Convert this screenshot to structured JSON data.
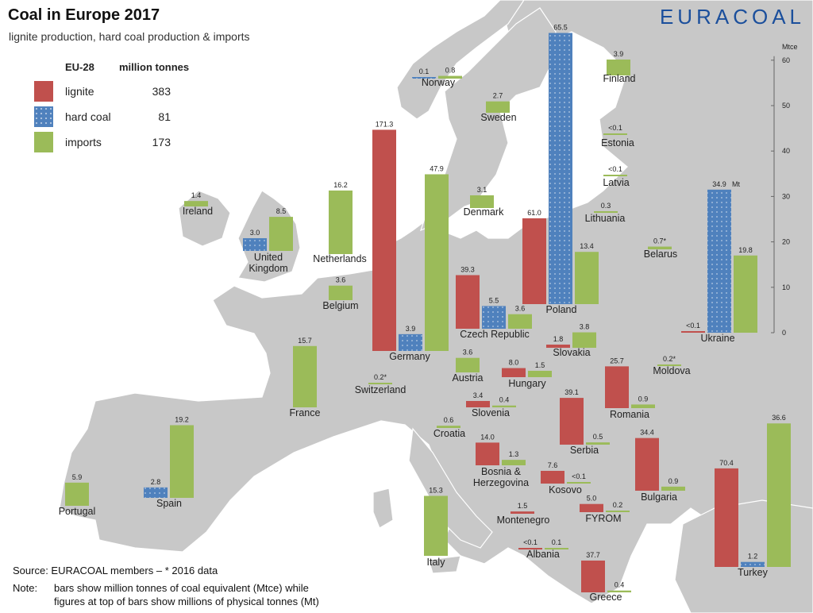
{
  "title": "Coal in Europe 2017",
  "subtitle": "lignite production, hard coal production & imports",
  "brand": "EURACOAL",
  "legend": {
    "header_region": "EU-28",
    "header_unit": "million tonnes",
    "items": [
      {
        "name": "lignite",
        "value": "383"
      },
      {
        "name": "hard coal",
        "value": "81"
      },
      {
        "name": "imports",
        "value": "173"
      }
    ]
  },
  "source": "Source: EURACOAL members  –  * 2016 data",
  "note_label": "Note:",
  "note_line1": "bars show million tonnes of coal equivalent (Mtce) while",
  "note_line2": "figures at top of bars show millions of physical tonnes (Mt)",
  "colors": {
    "lignite": "#c0504d",
    "hard_coal": "#4f81bd",
    "imports": "#9bbb59",
    "land": "#c8c8c8",
    "sea": "#ffffff",
    "brand": "#1b4f9c"
  },
  "chart_data": {
    "type": "bar",
    "title": "Coal in Europe 2017",
    "subtitle": "lignite production, hard coal production & imports",
    "unit": "Mtce",
    "axis_label": "Mtce",
    "mt_suffix": "Mt",
    "ylim": [
      0,
      60
    ],
    "yticks": [
      0,
      10,
      20,
      30,
      40,
      50,
      60
    ],
    "series_names": [
      "lignite",
      "hard coal",
      "imports"
    ],
    "countries": [
      {
        "name": "Norway",
        "bars": [
          {
            "s": "hard coal",
            "mtce": 0.1,
            "label": "0.1"
          },
          {
            "s": "imports",
            "mtce": 0.6,
            "label": "0.8"
          }
        ]
      },
      {
        "name": "Finland",
        "bars": [
          {
            "s": "imports",
            "mtce": 3.5,
            "label": "3.9"
          }
        ]
      },
      {
        "name": "Sweden",
        "bars": [
          {
            "s": "imports",
            "mtce": 2.5,
            "label": "2.7"
          }
        ]
      },
      {
        "name": "Estonia",
        "bars": [
          {
            "s": "imports",
            "mtce": 0.1,
            "label": "<0.1"
          }
        ]
      },
      {
        "name": "Latvia",
        "bars": [
          {
            "s": "imports",
            "mtce": 0.1,
            "label": "<0.1"
          }
        ]
      },
      {
        "name": "Ireland",
        "bars": [
          {
            "s": "imports",
            "mtce": 1.2,
            "label": "1.4"
          }
        ]
      },
      {
        "name": "United Kingdom",
        "bars": [
          {
            "s": "hard coal",
            "mtce": 2.8,
            "label": "3.0"
          },
          {
            "s": "imports",
            "mtce": 7.5,
            "label": "8.5"
          }
        ]
      },
      {
        "name": "Netherlands",
        "bars": [
          {
            "s": "imports",
            "mtce": 14.0,
            "label": "16.2"
          }
        ]
      },
      {
        "name": "Denmark",
        "bars": [
          {
            "s": "imports",
            "mtce": 2.8,
            "label": "3.1"
          }
        ]
      },
      {
        "name": "Lithuania",
        "bars": [
          {
            "s": "imports",
            "mtce": 0.3,
            "label": "0.3"
          }
        ]
      },
      {
        "name": "Belarus",
        "bars": [
          {
            "s": "imports",
            "mtce": 0.6,
            "label": "0.7*"
          }
        ]
      },
      {
        "name": "Belgium",
        "bars": [
          {
            "s": "imports",
            "mtce": 3.2,
            "label": "3.6"
          }
        ]
      },
      {
        "name": "Germany",
        "bars": [
          {
            "s": "lignite",
            "mtce": 48.7,
            "label": "171.3"
          },
          {
            "s": "hard coal",
            "mtce": 3.7,
            "label": "3.9"
          },
          {
            "s": "imports",
            "mtce": 38.9,
            "label": "47.9"
          }
        ]
      },
      {
        "name": "Poland",
        "bars": [
          {
            "s": "lignite",
            "mtce": 18.9,
            "label": "61.0"
          },
          {
            "s": "hard coal",
            "mtce": 59.7,
            "label": "65.5"
          },
          {
            "s": "imports",
            "mtce": 11.5,
            "label": "13.4"
          }
        ]
      },
      {
        "name": "Czech Republic",
        "bars": [
          {
            "s": "lignite",
            "mtce": 11.8,
            "label": "39.3"
          },
          {
            "s": "hard coal",
            "mtce": 5.0,
            "label": "5.5"
          },
          {
            "s": "imports",
            "mtce": 3.2,
            "label": "3.6"
          }
        ]
      },
      {
        "name": "Ukraine",
        "bars": [
          {
            "s": "lignite",
            "mtce": 0.1,
            "label": "<0.1"
          },
          {
            "s": "hard coal",
            "mtce": 31.5,
            "label": "34.9"
          },
          {
            "s": "imports",
            "mtce": 17.0,
            "label": "19.8"
          }
        ]
      },
      {
        "name": "Slovakia",
        "bars": [
          {
            "s": "lignite",
            "mtce": 0.7,
            "label": "1.8"
          },
          {
            "s": "imports",
            "mtce": 3.4,
            "label": "3.8"
          }
        ]
      },
      {
        "name": "Austria",
        "bars": [
          {
            "s": "imports",
            "mtce": 3.2,
            "label": "3.6"
          }
        ]
      },
      {
        "name": "Hungary",
        "bars": [
          {
            "s": "lignite",
            "mtce": 2.0,
            "label": "8.0"
          },
          {
            "s": "imports",
            "mtce": 1.4,
            "label": "1.5"
          }
        ]
      },
      {
        "name": "Moldova",
        "bars": [
          {
            "s": "imports",
            "mtce": 0.2,
            "label": "0.2*"
          }
        ]
      },
      {
        "name": "France",
        "bars": [
          {
            "s": "imports",
            "mtce": 13.5,
            "label": "15.7"
          }
        ]
      },
      {
        "name": "Switzerland",
        "bars": [
          {
            "s": "imports",
            "mtce": 0.2,
            "label": "0.2*"
          }
        ]
      },
      {
        "name": "Slovenia",
        "bars": [
          {
            "s": "lignite",
            "mtce": 1.4,
            "label": "3.4"
          },
          {
            "s": "imports",
            "mtce": 0.4,
            "label": "0.4"
          }
        ]
      },
      {
        "name": "Romania",
        "bars": [
          {
            "s": "lignite",
            "mtce": 9.2,
            "label": "25.7"
          },
          {
            "s": "imports",
            "mtce": 0.8,
            "label": "0.9"
          }
        ]
      },
      {
        "name": "Serbia",
        "bars": [
          {
            "s": "lignite",
            "mtce": 10.3,
            "label": "39.1"
          },
          {
            "s": "imports",
            "mtce": 0.5,
            "label": "0.5"
          }
        ]
      },
      {
        "name": "Croatia",
        "bars": [
          {
            "s": "imports",
            "mtce": 0.5,
            "label": "0.6"
          }
        ]
      },
      {
        "name": "Bosnia & Herzegovina",
        "bars": [
          {
            "s": "lignite",
            "mtce": 5.0,
            "label": "14.0"
          },
          {
            "s": "imports",
            "mtce": 1.2,
            "label": "1.3"
          }
        ]
      },
      {
        "name": "Portugal",
        "bars": [
          {
            "s": "imports",
            "mtce": 5.1,
            "label": "5.9"
          }
        ]
      },
      {
        "name": "Spain",
        "bars": [
          {
            "s": "hard coal",
            "mtce": 2.3,
            "label": "2.8"
          },
          {
            "s": "imports",
            "mtce": 16.0,
            "label": "19.2"
          }
        ]
      },
      {
        "name": "Kosovo",
        "bars": [
          {
            "s": "lignite",
            "mtce": 2.8,
            "label": "7.6"
          },
          {
            "s": "imports",
            "mtce": 0.1,
            "label": "<0.1"
          }
        ]
      },
      {
        "name": "Bulgaria",
        "bars": [
          {
            "s": "lignite",
            "mtce": 11.6,
            "label": "34.4"
          },
          {
            "s": "imports",
            "mtce": 0.9,
            "label": "0.9"
          }
        ]
      },
      {
        "name": "FYROM",
        "bars": [
          {
            "s": "lignite",
            "mtce": 1.8,
            "label": "5.0"
          },
          {
            "s": "imports",
            "mtce": 0.2,
            "label": "0.2"
          }
        ]
      },
      {
        "name": "Montenegro",
        "bars": [
          {
            "s": "lignite",
            "mtce": 0.5,
            "label": "1.5"
          }
        ]
      },
      {
        "name": "Italy",
        "bars": [
          {
            "s": "imports",
            "mtce": 13.2,
            "label": "15.3"
          }
        ]
      },
      {
        "name": "Albania",
        "bars": [
          {
            "s": "lignite",
            "mtce": 0.1,
            "label": "<0.1"
          },
          {
            "s": "imports",
            "mtce": 0.1,
            "label": "0.1"
          }
        ]
      },
      {
        "name": "Greece",
        "bars": [
          {
            "s": "lignite",
            "mtce": 7.0,
            "label": "37.7"
          },
          {
            "s": "imports",
            "mtce": 0.4,
            "label": "0.4"
          }
        ]
      },
      {
        "name": "Turkey",
        "bars": [
          {
            "s": "lignite",
            "mtce": 21.7,
            "label": "70.4"
          },
          {
            "s": "hard coal",
            "mtce": 1.1,
            "label": "1.2"
          },
          {
            "s": "imports",
            "mtce": 31.6,
            "label": "36.6"
          }
        ]
      }
    ]
  }
}
